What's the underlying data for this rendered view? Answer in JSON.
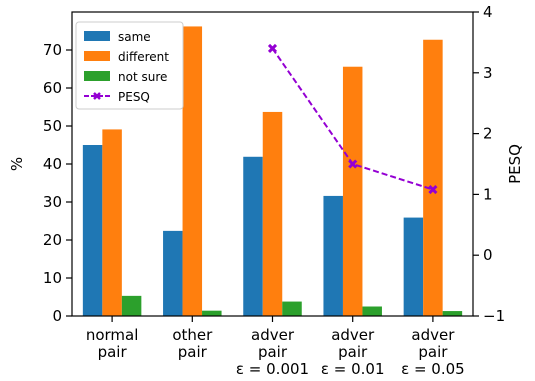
{
  "chart_data": {
    "type": "bar",
    "categories": [
      [
        "normal",
        "pair"
      ],
      [
        "other",
        "pair"
      ],
      [
        "adver",
        "pair",
        "ε = 0.001"
      ],
      [
        "adver",
        "pair",
        "ε = 0.01"
      ],
      [
        "adver",
        "pair",
        "ε = 0.05"
      ]
    ],
    "series": [
      {
        "name": "same",
        "color": "#1f77b4",
        "values": [
          45.0,
          22.4,
          41.9,
          31.6,
          25.9
        ]
      },
      {
        "name": "different",
        "color": "#ff7f0e",
        "values": [
          49.1,
          76.2,
          53.7,
          65.6,
          72.7
        ]
      },
      {
        "name": "not sure",
        "color": "#2ca02c",
        "values": [
          5.3,
          1.4,
          3.8,
          2.5,
          1.3
        ]
      }
    ],
    "line_series": {
      "name": "PESQ",
      "color": "#9400d3",
      "axis": "right",
      "points": [
        {
          "category_index": 2,
          "value": 3.4
        },
        {
          "category_index": 3,
          "value": 1.5
        },
        {
          "category_index": 4,
          "value": 1.08
        }
      ]
    },
    "ylabel": "%",
    "ylim": [
      0,
      80
    ],
    "yticks": [
      0,
      10,
      20,
      30,
      40,
      50,
      60,
      70
    ],
    "y2label": "PESQ",
    "y2lim": [
      -1,
      4
    ],
    "y2ticks": [
      -1,
      0,
      1,
      2,
      3,
      4
    ],
    "legend_position": "top-left",
    "grid": false
  }
}
